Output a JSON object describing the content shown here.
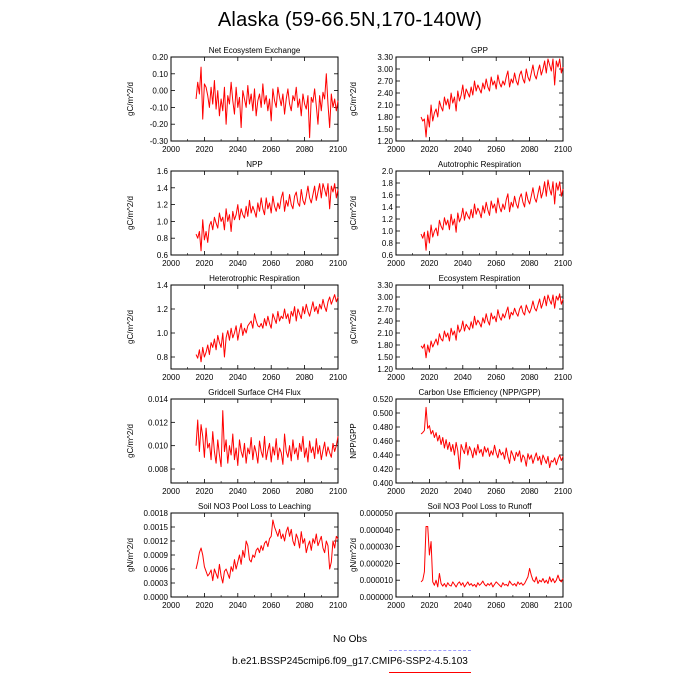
{
  "page": {
    "title": "Alaska (59-66.5N,170-140W)"
  },
  "colors": {
    "model_line": "#ff0000",
    "obs_line": "#a0a0ff",
    "axis": "#000000"
  },
  "legend": {
    "obs_label": "No Obs",
    "model_label": "b.e21.BSSP245cmip6.f09_g17.CMIP6-SSP2-4.5.103"
  },
  "chart_data": [
    {
      "type": "line",
      "title": "Net Ecosystem Exchange",
      "ylabel": "gC/m^2/d",
      "xlabel": "",
      "xlim": [
        2000,
        2100
      ],
      "ylim": [
        -0.3,
        0.2
      ],
      "xticks": [
        2000,
        2020,
        2040,
        2060,
        2080,
        2100
      ],
      "yticks": [
        "-0.30",
        "-0.20",
        "-0.10",
        "0.00",
        "0.10",
        "0.20"
      ],
      "x_start": 2015,
      "x_end": 2100,
      "values": [
        -0.05,
        0.05,
        -0.02,
        0.14,
        -0.17,
        0.04,
        0.02,
        -0.03,
        -0.1,
        0.02,
        -0.08,
        0.06,
        -0.11,
        0.0,
        -0.15,
        -0.05,
        -0.12,
        0.02,
        -0.2,
        -0.03,
        -0.08,
        0.05,
        -0.06,
        -0.14,
        0.02,
        -0.1,
        -0.04,
        -0.22,
        0.0,
        -0.05,
        -0.1,
        0.03,
        -0.08,
        -0.02,
        -0.12,
        0.01,
        -0.15,
        -0.06,
        -0.02,
        -0.1,
        0.04,
        -0.08,
        -0.03,
        -0.12,
        -0.05,
        -0.18,
        0.01,
        -0.06,
        -0.1,
        0.02,
        -0.04,
        -0.09,
        -0.02,
        -0.14,
        -0.05,
        0.01,
        -0.08,
        -0.12,
        -0.03,
        -0.06,
        0.02,
        -0.1,
        -0.05,
        -0.15,
        -0.02,
        -0.08,
        -0.11,
        -0.03,
        -0.28,
        -0.04,
        -0.07,
        0.01,
        -0.09,
        -0.2,
        -0.03,
        -0.12,
        -0.01,
        -0.05,
        0.1,
        -0.08,
        -0.22,
        -0.02,
        -0.1,
        -0.05,
        -0.12,
        -0.06
      ]
    },
    {
      "type": "line",
      "title": "GPP",
      "ylabel": "gC/m^2/d",
      "xlabel": "",
      "xlim": [
        2000,
        2100
      ],
      "ylim": [
        1.2,
        3.3
      ],
      "xticks": [
        2000,
        2020,
        2040,
        2060,
        2080,
        2100
      ],
      "yticks": [
        "1.20",
        "1.50",
        "1.80",
        "2.10",
        "2.40",
        "2.70",
        "3.00",
        "3.30"
      ],
      "x_start": 2015,
      "x_end": 2100,
      "values": [
        1.8,
        1.7,
        1.75,
        1.3,
        1.85,
        1.55,
        2.1,
        1.7,
        1.9,
        2.0,
        1.8,
        2.2,
        2.05,
        1.95,
        2.3,
        2.1,
        2.25,
        2.0,
        2.4,
        2.15,
        2.3,
        1.95,
        2.45,
        2.2,
        2.35,
        2.6,
        2.25,
        2.5,
        2.4,
        2.3,
        2.55,
        2.35,
        2.7,
        2.45,
        2.6,
        2.5,
        2.4,
        2.65,
        2.5,
        2.75,
        2.55,
        2.45,
        2.8,
        2.6,
        2.7,
        2.5,
        2.85,
        2.65,
        2.55,
        2.7,
        2.6,
        2.8,
        2.95,
        2.55,
        2.75,
        2.65,
        2.9,
        2.7,
        2.6,
        2.85,
        2.95,
        2.75,
        2.65,
        3.0,
        2.8,
        2.7,
        2.9,
        3.1,
        2.85,
        2.75,
        2.95,
        3.1,
        2.85,
        3.0,
        3.2,
        2.9,
        3.25,
        3.1,
        2.95,
        3.25,
        2.6,
        3.2,
        3.05,
        3.25,
        2.9,
        3.05
      ]
    },
    {
      "type": "line",
      "title": "NPP",
      "ylabel": "gC/m^2/d",
      "xlabel": "",
      "xlim": [
        2000,
        2100
      ],
      "ylim": [
        0.6,
        1.6
      ],
      "xticks": [
        2000,
        2020,
        2040,
        2060,
        2080,
        2100
      ],
      "yticks": [
        "0.6",
        "0.8",
        "1.0",
        "1.2",
        "1.4",
        "1.6"
      ],
      "x_start": 2015,
      "x_end": 2100,
      "values": [
        0.85,
        0.8,
        0.88,
        0.65,
        1.02,
        0.78,
        0.88,
        0.75,
        0.95,
        1.0,
        0.9,
        1.05,
        0.98,
        0.92,
        1.1,
        1.0,
        1.05,
        0.9,
        1.15,
        1.0,
        1.08,
        0.88,
        1.12,
        1.02,
        1.08,
        1.2,
        1.02,
        1.15,
        1.08,
        1.04,
        1.18,
        1.06,
        1.25,
        1.1,
        1.18,
        1.12,
        1.05,
        1.22,
        1.12,
        1.28,
        1.15,
        1.08,
        1.28,
        1.15,
        1.22,
        1.1,
        1.3,
        1.18,
        1.12,
        1.22,
        1.15,
        1.28,
        1.35,
        1.12,
        1.25,
        1.18,
        1.32,
        1.2,
        1.15,
        1.3,
        1.35,
        1.22,
        1.18,
        1.38,
        1.25,
        1.2,
        1.3,
        1.42,
        1.28,
        1.22,
        1.32,
        1.42,
        1.25,
        1.35,
        1.45,
        1.28,
        1.45,
        1.38,
        1.3,
        1.45,
        1.15,
        1.42,
        1.35,
        1.45,
        1.28,
        1.38
      ]
    },
    {
      "type": "line",
      "title": "Autotrophic Respiration",
      "ylabel": "gC/m^2/d",
      "xlabel": "",
      "xlim": [
        2000,
        2100
      ],
      "ylim": [
        0.6,
        2.0
      ],
      "xticks": [
        2000,
        2020,
        2040,
        2060,
        2080,
        2100
      ],
      "yticks": [
        "0.6",
        "0.8",
        "1.0",
        "1.2",
        "1.4",
        "1.6",
        "1.8",
        "2.0"
      ],
      "x_start": 2015,
      "x_end": 2100,
      "values": [
        0.95,
        0.88,
        0.98,
        0.68,
        1.0,
        0.8,
        1.1,
        0.9,
        1.0,
        1.05,
        0.92,
        1.18,
        1.08,
        1.02,
        1.22,
        1.1,
        1.18,
        1.02,
        1.28,
        1.1,
        1.2,
        0.98,
        1.3,
        1.15,
        1.22,
        1.38,
        1.18,
        1.32,
        1.25,
        1.2,
        1.36,
        1.22,
        1.45,
        1.28,
        1.38,
        1.32,
        1.22,
        1.42,
        1.3,
        1.48,
        1.35,
        1.26,
        1.5,
        1.38,
        1.45,
        1.3,
        1.55,
        1.4,
        1.32,
        1.45,
        1.36,
        1.52,
        1.62,
        1.32,
        1.48,
        1.4,
        1.58,
        1.45,
        1.38,
        1.55,
        1.62,
        1.48,
        1.4,
        1.65,
        1.52,
        1.45,
        1.58,
        1.72,
        1.55,
        1.48,
        1.62,
        1.75,
        1.55,
        1.65,
        1.82,
        1.58,
        1.85,
        1.7,
        1.6,
        1.82,
        1.45,
        1.8,
        1.68,
        1.82,
        1.58,
        1.7
      ]
    },
    {
      "type": "line",
      "title": "Heterotrophic Respiration",
      "ylabel": "gC/m^2/d",
      "xlabel": "",
      "xlim": [
        2000,
        2100
      ],
      "ylim": [
        0.7,
        1.4
      ],
      "xticks": [
        2000,
        2020,
        2040,
        2060,
        2080,
        2100
      ],
      "yticks": [
        "0.8",
        "1.0",
        "1.2",
        "1.4"
      ],
      "x_start": 2015,
      "x_end": 2100,
      "values": [
        0.82,
        0.79,
        0.86,
        0.76,
        0.88,
        0.8,
        0.84,
        0.9,
        0.82,
        0.92,
        0.88,
        0.95,
        0.86,
        0.98,
        0.92,
        0.88,
        1.0,
        0.8,
        0.96,
        1.02,
        0.94,
        1.04,
        0.96,
        1.0,
        1.06,
        0.94,
        1.02,
        1.08,
        0.98,
        1.04,
        1.0,
        1.06,
        1.08,
        1.1,
        1.04,
        1.16,
        1.1,
        1.06,
        1.05,
        1.08,
        1.04,
        1.12,
        1.06,
        1.14,
        1.08,
        1.04,
        1.16,
        1.12,
        1.08,
        1.18,
        1.1,
        1.14,
        1.12,
        1.2,
        1.12,
        1.16,
        1.08,
        1.18,
        1.14,
        1.22,
        1.1,
        1.2,
        1.16,
        1.12,
        1.22,
        1.16,
        1.24,
        1.18,
        1.14,
        1.2,
        1.26,
        1.18,
        1.22,
        1.16,
        1.24,
        1.2,
        1.28,
        1.22,
        1.18,
        1.26,
        1.3,
        1.24,
        1.28,
        1.32,
        1.26,
        1.3
      ]
    },
    {
      "type": "line",
      "title": "Ecosystem Respiration",
      "ylabel": "gC/m^2/d",
      "xlabel": "",
      "xlim": [
        2000,
        2100
      ],
      "ylim": [
        1.2,
        3.3
      ],
      "xticks": [
        2000,
        2020,
        2040,
        2060,
        2080,
        2100
      ],
      "yticks": [
        "1.20",
        "1.50",
        "1.80",
        "2.10",
        "2.40",
        "2.70",
        "3.00",
        "3.30"
      ],
      "x_start": 2015,
      "x_end": 2100,
      "values": [
        1.78,
        1.72,
        1.82,
        1.48,
        1.8,
        1.62,
        1.9,
        1.75,
        1.85,
        1.95,
        1.8,
        2.08,
        1.95,
        1.9,
        2.15,
        2.0,
        2.1,
        1.9,
        2.22,
        2.05,
        2.15,
        1.92,
        2.3,
        2.12,
        2.2,
        2.4,
        2.15,
        2.32,
        2.25,
        2.18,
        2.38,
        2.22,
        2.52,
        2.3,
        2.42,
        2.35,
        2.25,
        2.48,
        2.35,
        2.58,
        2.4,
        2.3,
        2.6,
        2.45,
        2.52,
        2.38,
        2.68,
        2.5,
        2.42,
        2.58,
        2.48,
        2.62,
        2.75,
        2.45,
        2.62,
        2.55,
        2.72,
        2.6,
        2.52,
        2.7,
        2.78,
        2.62,
        2.55,
        2.8,
        2.68,
        2.6,
        2.72,
        2.9,
        2.72,
        2.65,
        2.8,
        2.95,
        2.72,
        2.85,
        3.02,
        2.78,
        3.05,
        2.92,
        2.82,
        3.05,
        2.72,
        3.02,
        2.92,
        3.08,
        2.82,
        2.95
      ]
    },
    {
      "type": "line",
      "title": "Gridcell Surface CH4 Flux",
      "ylabel": "gC/m^2/d",
      "xlabel": "",
      "xlim": [
        2000,
        2100
      ],
      "ylim": [
        0.0068,
        0.014
      ],
      "xticks": [
        2000,
        2020,
        2040,
        2060,
        2080,
        2100
      ],
      "yticks": [
        "0.008",
        "0.010",
        "0.012",
        "0.014"
      ],
      "x_start": 2015,
      "x_end": 2100,
      "values": [
        0.01,
        0.0122,
        0.0095,
        0.0118,
        0.0108,
        0.009,
        0.0115,
        0.0098,
        0.0102,
        0.0088,
        0.0112,
        0.0095,
        0.0085,
        0.0105,
        0.0092,
        0.0082,
        0.013,
        0.0095,
        0.0105,
        0.0085,
        0.01,
        0.0092,
        0.011,
        0.0088,
        0.0098,
        0.0083,
        0.0105,
        0.0095,
        0.009,
        0.0102,
        0.0085,
        0.0098,
        0.0093,
        0.0107,
        0.0088,
        0.01,
        0.0094,
        0.0085,
        0.0104,
        0.0095,
        0.009,
        0.0108,
        0.0088,
        0.0096,
        0.0102,
        0.0086,
        0.0099,
        0.0092,
        0.0106,
        0.0088,
        0.0098,
        0.0094,
        0.0084,
        0.011,
        0.0095,
        0.009,
        0.01,
        0.0087,
        0.0105,
        0.0093,
        0.0098,
        0.0088,
        0.0102,
        0.0095,
        0.0108,
        0.009,
        0.0098,
        0.0086,
        0.0104,
        0.0094,
        0.0099,
        0.0089,
        0.0106,
        0.0093,
        0.01,
        0.0088,
        0.0096,
        0.0103,
        0.0091,
        0.0099,
        0.0094,
        0.009,
        0.0102,
        0.0095,
        0.01,
        0.0108
      ]
    },
    {
      "type": "line",
      "title": "Carbon Use Efficiency (NPP/GPP)",
      "ylabel": "NPP/GPP",
      "xlabel": "",
      "xlim": [
        2000,
        2100
      ],
      "ylim": [
        0.4,
        0.52
      ],
      "xticks": [
        2000,
        2020,
        2040,
        2060,
        2080,
        2100
      ],
      "yticks": [
        "0.400",
        "0.420",
        "0.440",
        "0.460",
        "0.480",
        "0.500",
        "0.520"
      ],
      "x_start": 2015,
      "x_end": 2100,
      "values": [
        0.47,
        0.472,
        0.475,
        0.508,
        0.478,
        0.482,
        0.47,
        0.475,
        0.465,
        0.472,
        0.46,
        0.468,
        0.455,
        0.465,
        0.45,
        0.462,
        0.448,
        0.458,
        0.445,
        0.455,
        0.44,
        0.458,
        0.446,
        0.42,
        0.455,
        0.448,
        0.442,
        0.458,
        0.44,
        0.452,
        0.446,
        0.436,
        0.45,
        0.44,
        0.455,
        0.443,
        0.448,
        0.438,
        0.452,
        0.444,
        0.45,
        0.438,
        0.446,
        0.44,
        0.454,
        0.443,
        0.436,
        0.448,
        0.44,
        0.444,
        0.434,
        0.45,
        0.438,
        0.428,
        0.446,
        0.44,
        0.432,
        0.444,
        0.438,
        0.446,
        0.43,
        0.44,
        0.436,
        0.424,
        0.442,
        0.434,
        0.44,
        0.428,
        0.436,
        0.443,
        0.432,
        0.438,
        0.426,
        0.44,
        0.434,
        0.428,
        0.438,
        0.422,
        0.432,
        0.43,
        0.436,
        0.426,
        0.434,
        0.44,
        0.432,
        0.438
      ]
    },
    {
      "type": "line",
      "title": "Soil NO3 Pool Loss to Leaching",
      "ylabel": "gN/m^2/d",
      "xlabel": "",
      "xlim": [
        2000,
        2100
      ],
      "ylim": [
        0.0,
        0.0018
      ],
      "xticks": [
        2000,
        2020,
        2040,
        2060,
        2080,
        2100
      ],
      "yticks": [
        "0.0000",
        "0.0003",
        "0.0006",
        "0.0009",
        "0.0012",
        "0.0015",
        "0.0018"
      ],
      "x_start": 2015,
      "x_end": 2100,
      "values": [
        0.0006,
        0.00075,
        0.00095,
        0.00105,
        0.0009,
        0.00065,
        0.00055,
        0.00045,
        0.0005,
        0.00058,
        0.00035,
        0.0006,
        0.0005,
        0.0004,
        0.0007,
        0.00045,
        0.0003,
        0.00055,
        0.0006,
        0.0005,
        0.0004,
        0.00065,
        0.00055,
        0.0008,
        0.0006,
        0.00075,
        0.0009,
        0.0007,
        0.001,
        0.00085,
        0.0012,
        0.0011,
        0.0008,
        0.00075,
        0.0009,
        0.00085,
        0.001,
        0.00105,
        0.00095,
        0.0011,
        0.001,
        0.00115,
        0.0012,
        0.00108,
        0.00125,
        0.0013,
        0.00165,
        0.0015,
        0.0014,
        0.0013,
        0.00145,
        0.00125,
        0.00135,
        0.0012,
        0.0014,
        0.0015,
        0.0013,
        0.00145,
        0.0012,
        0.0011,
        0.00135,
        0.00125,
        0.00105,
        0.0014,
        0.00115,
        0.00125,
        0.00095,
        0.0011,
        0.0012,
        0.001,
        0.00125,
        0.00115,
        0.00135,
        0.0011,
        0.0012,
        0.0013,
        0.00105,
        0.00095,
        0.0012,
        0.0011,
        0.0006,
        0.00075,
        0.0012,
        0.00105,
        0.0013,
        0.00125
      ]
    },
    {
      "type": "line",
      "title": "Soil NO3 Pool Loss to Runoff",
      "ylabel": "gN/m^2/d",
      "xlabel": "",
      "xlim": [
        2000,
        2100
      ],
      "ylim": [
        0.0,
        5e-05
      ],
      "xticks": [
        2000,
        2020,
        2040,
        2060,
        2080,
        2100
      ],
      "yticks": [
        "0.000000",
        "0.000010",
        "0.000020",
        "0.000030",
        "0.000040",
        "0.000050"
      ],
      "x_start": 2015,
      "x_end": 2100,
      "values": [
        9e-06,
        1e-05,
        1.5e-05,
        4.2e-05,
        4.2e-05,
        2.5e-05,
        3.3e-05,
        9e-06,
        7e-06,
        1e-05,
        6e-06,
        1.4e-05,
        8e-06,
        6.5e-06,
        8e-06,
        6e-06,
        8.5e-06,
        7e-06,
        6.5e-06,
        9e-06,
        7.5e-06,
        6e-06,
        8e-06,
        9e-06,
        7e-06,
        8.5e-06,
        6e-06,
        7.5e-06,
        9e-06,
        7e-06,
        8e-06,
        6.5e-06,
        7.5e-06,
        6e-06,
        8.5e-06,
        7e-06,
        8e-06,
        9.5e-06,
        7.5e-06,
        6.5e-06,
        8e-06,
        7e-06,
        8.5e-06,
        6e-06,
        7.5e-06,
        9e-06,
        8e-06,
        7e-06,
        6e-06,
        8.5e-06,
        7e-06,
        7.5e-06,
        6.5e-06,
        9.5e-06,
        8e-06,
        7e-06,
        8e-06,
        6.5e-06,
        9e-06,
        7.5e-06,
        8.5e-06,
        7e-06,
        8e-06,
        1e-05,
        1.2e-05,
        1.7e-05,
        1.3e-05,
        1e-05,
        9e-06,
        1.2e-05,
        8e-06,
        1e-05,
        9e-06,
        1.1e-05,
        8.5e-06,
        1e-05,
        8e-06,
        1.2e-05,
        9e-06,
        1.1e-05,
        8.5e-06,
        1e-05,
        1.3e-05,
        1e-05,
        9e-06,
        1.1e-05
      ]
    }
  ]
}
